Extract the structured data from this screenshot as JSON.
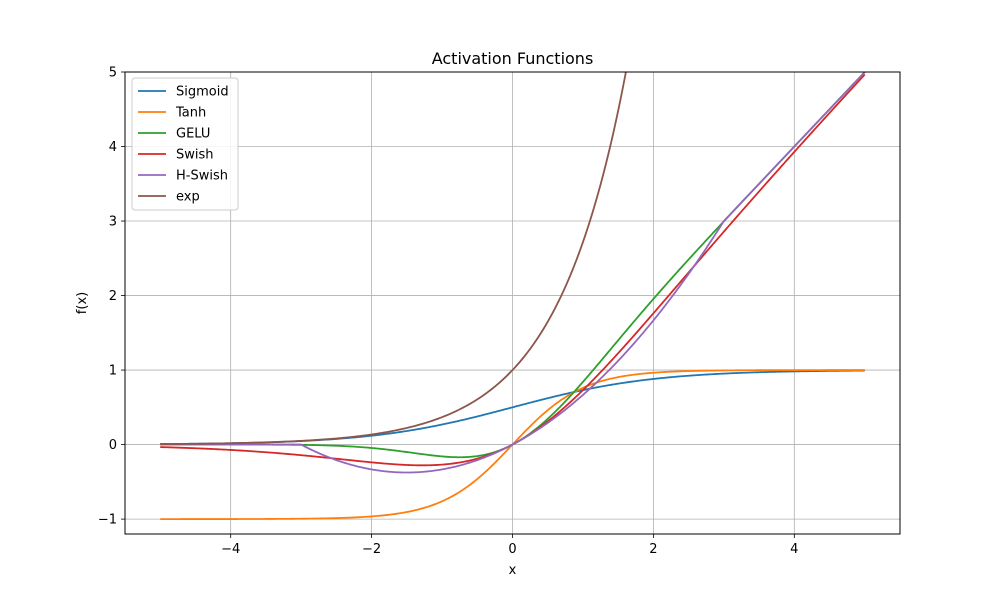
{
  "chart_data": {
    "type": "line",
    "title": "Activation Functions",
    "xlabel": "x",
    "ylabel": "f(x)",
    "xlim": [
      -5.5,
      5.5
    ],
    "ylim": [
      -1.2,
      5.0
    ],
    "x_ticks": [
      -4,
      -2,
      0,
      2,
      4
    ],
    "x_tick_labels": [
      "−4",
      "−2",
      "0",
      "2",
      "4"
    ],
    "y_ticks": [
      -1,
      0,
      1,
      2,
      3,
      4,
      5
    ],
    "y_tick_labels": [
      "−1",
      "0",
      "1",
      "2",
      "3",
      "4",
      "5"
    ],
    "x_range": [
      -5,
      5
    ],
    "grid": true,
    "legend_position": "top-left",
    "series": [
      {
        "name": "Sigmoid",
        "color": "#1f77b4"
      },
      {
        "name": "Tanh",
        "color": "#ff7f0e"
      },
      {
        "name": "GELU",
        "color": "#2ca02c"
      },
      {
        "name": "Swish",
        "color": "#d62728"
      },
      {
        "name": "H-Swish",
        "color": "#9467bd"
      },
      {
        "name": "exp",
        "color": "#8c564b"
      }
    ]
  }
}
